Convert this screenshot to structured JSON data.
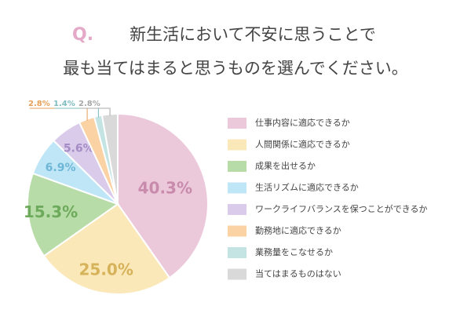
{
  "chart_data": {
    "type": "pie",
    "question_marker": "Q.",
    "title": [
      "新生活において不安に思うことで",
      "最も当てはまると思うものを選んでください。"
    ],
    "categories": [
      "仕事内容に適応できるか",
      "人間関係に適応できるか",
      "成果を出せるか",
      "生活リズムに適応できるか",
      "ワークライフバランスを保つことができるか",
      "勤務地に適応できるか",
      "業務量をこなせるか",
      "当てはまるものはない"
    ],
    "values": [
      40.3,
      25.0,
      15.3,
      6.9,
      5.6,
      2.8,
      1.4,
      2.8
    ],
    "value_labels": [
      "40.3%",
      "25.0%",
      "15.3%",
      "6.9%",
      "5.6%",
      "2.8%",
      "1.4%",
      "2.8%"
    ],
    "colors": [
      "#ecc8db",
      "#fbe8b8",
      "#b7dca8",
      "#bfe6f6",
      "#dacbea",
      "#fbd2a3",
      "#c4e4e4",
      "#d9d9d9"
    ],
    "label_colors": [
      "#c98bab",
      "#d6b35a",
      "#6daa5b",
      "#6db6d6",
      "#a48bc6",
      "#e6a058",
      "#7dbcc0",
      "#a8a8a8"
    ],
    "legend": "right"
  }
}
